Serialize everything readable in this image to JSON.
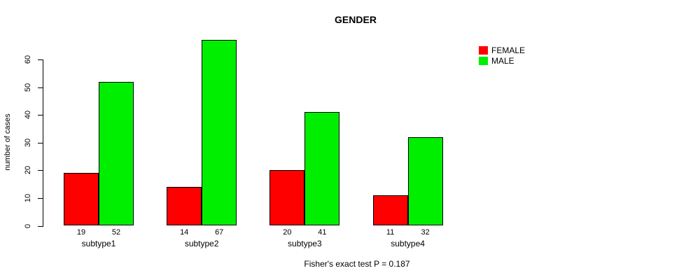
{
  "title": "GENDER",
  "caption": "Fisher's exact test P = 0.187",
  "colors": {
    "female": "#FF0000",
    "male": "#00EE00",
    "axis": "#000000",
    "background": "#FFFFFF"
  },
  "legend": {
    "items": [
      {
        "label": "FEMALE",
        "color": "#FF0000"
      },
      {
        "label": "MALE",
        "color": "#00EE00"
      }
    ]
  },
  "chart_data": {
    "type": "bar",
    "title": "GENDER",
    "xlabel": "",
    "ylabel": "number of cases",
    "categories": [
      "subtype1",
      "subtype2",
      "subtype3",
      "subtype4"
    ],
    "series": [
      {
        "name": "FEMALE",
        "color": "#FF0000",
        "values": [
          19,
          14,
          20,
          11
        ]
      },
      {
        "name": "MALE",
        "color": "#00EE00",
        "values": [
          52,
          67,
          41,
          32
        ]
      }
    ],
    "bar_value_labels": [
      [
        19,
        52
      ],
      [
        14,
        67
      ],
      [
        20,
        41
      ],
      [
        11,
        32
      ]
    ],
    "yticks": [
      0,
      10,
      20,
      30,
      40,
      50,
      60
    ],
    "ylim": [
      0,
      60
    ],
    "grid": false,
    "legend_position": "top-right",
    "annotation": "Fisher's exact test P = 0.187"
  }
}
